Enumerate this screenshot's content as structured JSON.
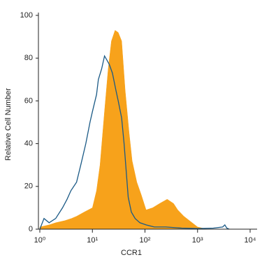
{
  "chart_data": {
    "type": "histogram-overlay",
    "x_label": "CCR1",
    "y_label": "Relative Cell Number",
    "xscale": "log",
    "xlim": [
      1,
      10000
    ],
    "xticks": [
      {
        "value": 1,
        "label": "10⁰"
      },
      {
        "value": 10,
        "label": "10¹"
      },
      {
        "value": 100,
        "label": "10²"
      },
      {
        "value": 1000,
        "label": "10³"
      },
      {
        "value": 10000,
        "label": "10⁴"
      }
    ],
    "ylim": [
      0,
      100
    ],
    "yticks": [
      0,
      20,
      40,
      60,
      80,
      100
    ],
    "series": [
      {
        "style": "filled",
        "color": "#f7a21b",
        "x": [
          1,
          1.5,
          2,
          3,
          4,
          5,
          7,
          10,
          12,
          14,
          17,
          20,
          23,
          27,
          31,
          36,
          42,
          50,
          57,
          70,
          85,
          105,
          140,
          190,
          265,
          350,
          420,
          550,
          700,
          1000,
          1500
        ],
        "values": [
          1,
          2,
          3,
          4,
          5,
          6,
          8,
          10,
          18,
          30,
          55,
          75,
          88,
          93,
          92,
          88,
          65,
          45,
          32,
          22,
          16,
          9,
          10,
          12,
          14,
          12,
          9,
          6,
          4,
          1,
          0
        ]
      },
      {
        "style": "outline",
        "color": "#1b5a86",
        "x": [
          1,
          1.2,
          1.5,
          2,
          2.7,
          3.3,
          3.9,
          5,
          6,
          7.5,
          9,
          10,
          12,
          13,
          15,
          17,
          19,
          21,
          24,
          28,
          31,
          36,
          40,
          48,
          55,
          65,
          80,
          105,
          150,
          250,
          500,
          1000,
          2000,
          3000,
          3300,
          3600,
          4000
        ],
        "values": [
          0,
          5,
          3,
          5,
          10,
          14,
          18,
          22,
          30,
          40,
          50,
          55,
          63,
          70,
          75,
          81,
          79,
          77,
          73,
          65,
          60,
          52,
          40,
          15,
          8,
          5,
          3,
          2,
          1,
          1,
          0.5,
          0.3,
          0.5,
          1,
          2,
          0.5,
          0
        ]
      }
    ]
  }
}
